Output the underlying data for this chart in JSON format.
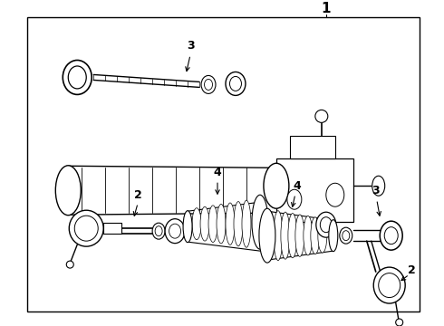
{
  "background_color": "#ffffff",
  "border_color": "#000000",
  "line_color": "#000000",
  "fig_width": 4.9,
  "fig_height": 3.6,
  "dpi": 100
}
